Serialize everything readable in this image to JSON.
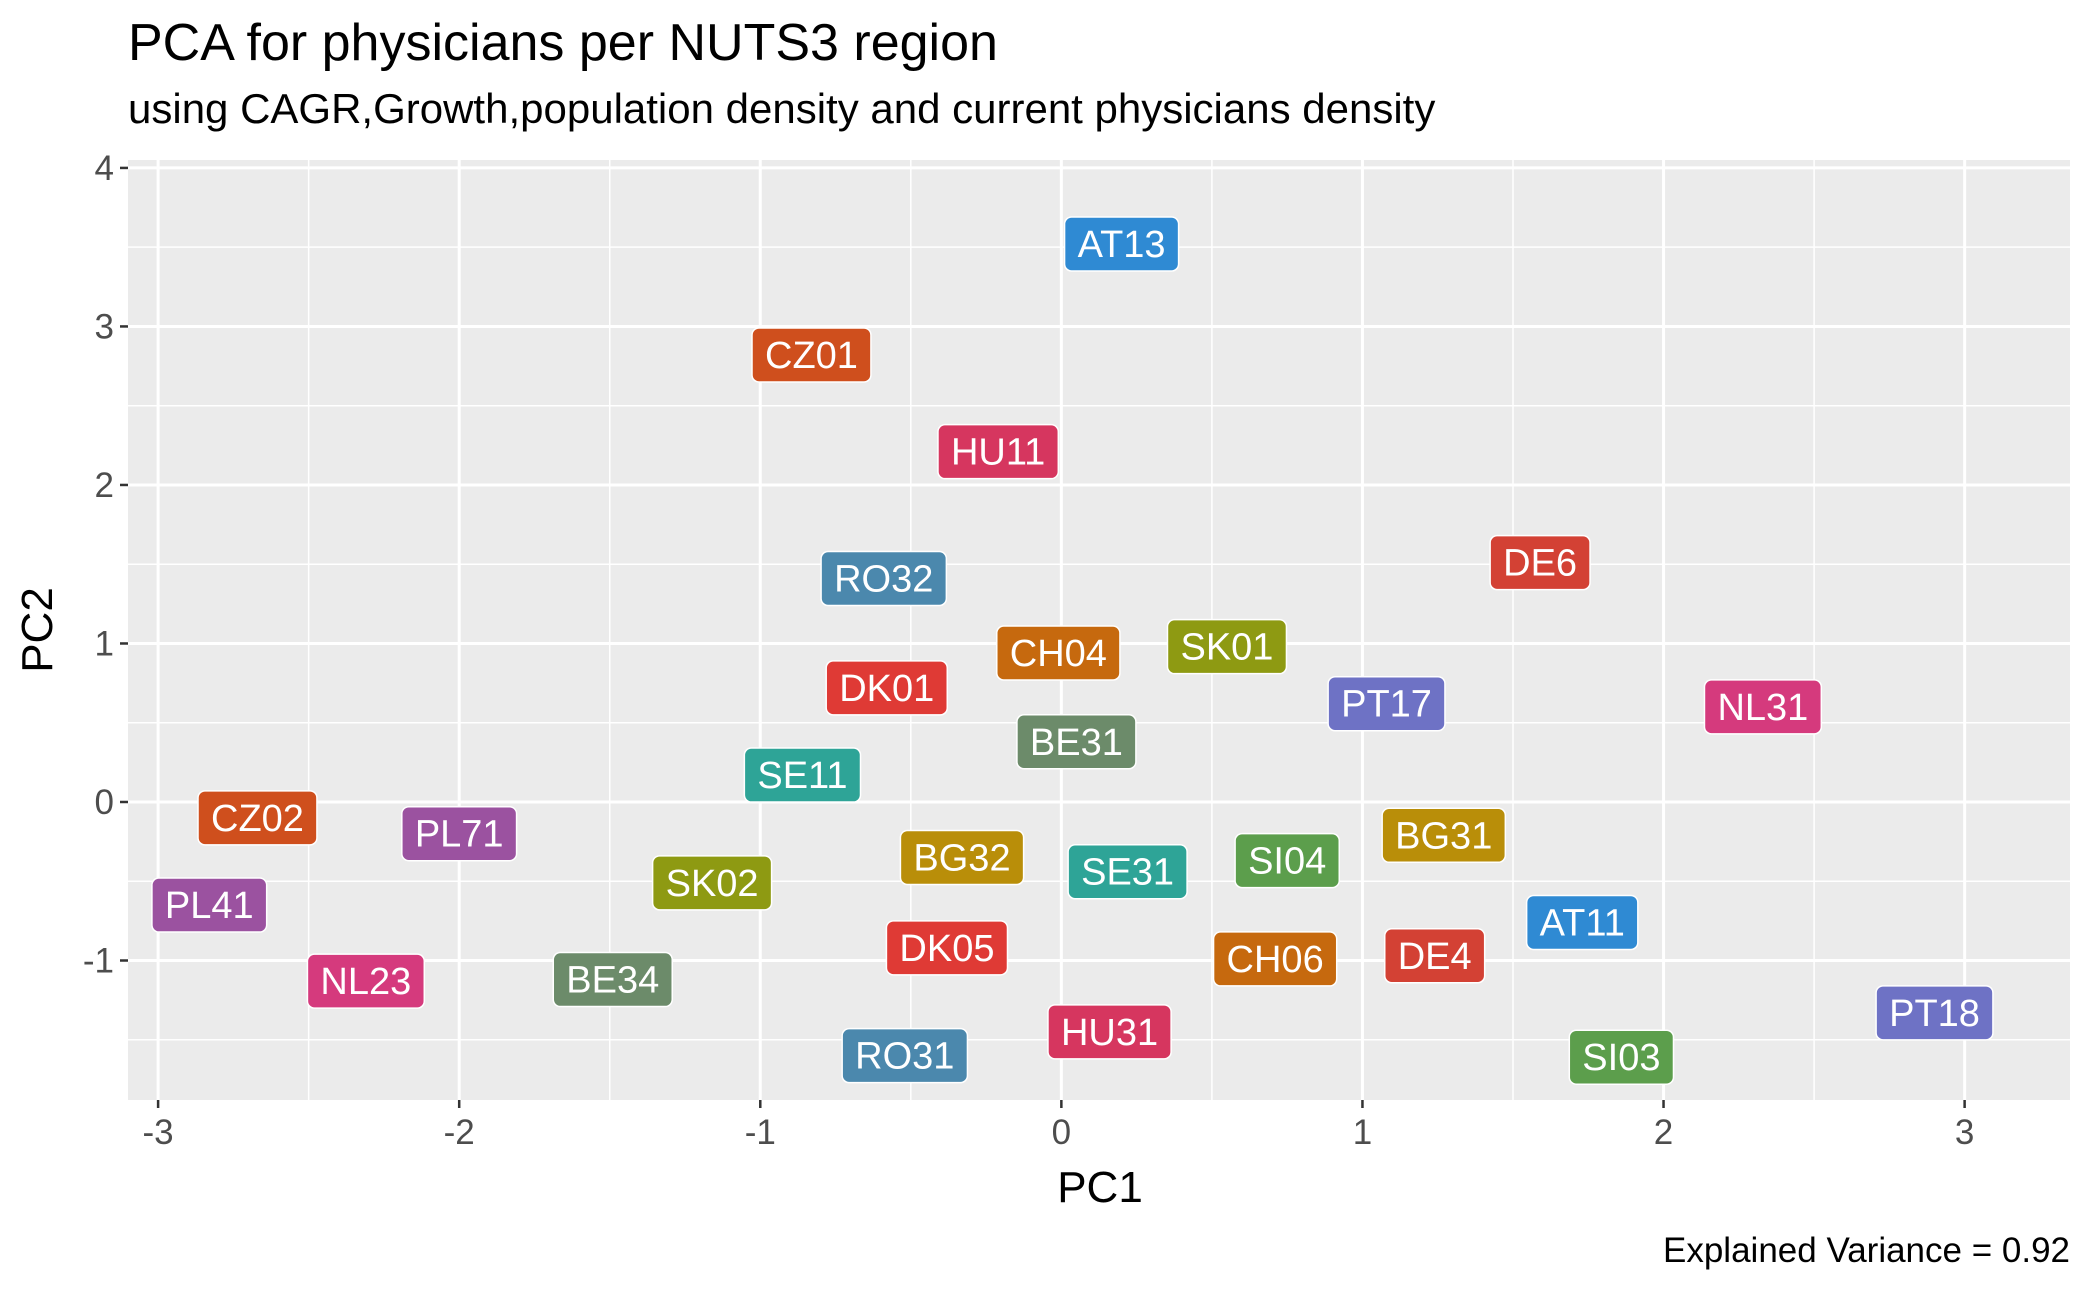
{
  "chart_data": {
    "type": "scatter",
    "title": "PCA for  physicians per NUTS3 region",
    "subtitle": "using CAGR,Growth,population density and current physicians density",
    "xlabel": "PC1",
    "ylabel": "PC2",
    "caption": "Explained Variance = 0.92",
    "xlim": [
      -3.1,
      3.35
    ],
    "ylim": [
      -1.88,
      4.05
    ],
    "x_ticks": [
      -3,
      -2,
      -1,
      0,
      1,
      2,
      3
    ],
    "x_tick_labels": [
      "-3",
      "-2",
      "-1",
      "0",
      "1",
      "2",
      "3"
    ],
    "y_ticks": [
      -1,
      0,
      1,
      2,
      3,
      4
    ],
    "y_tick_labels": [
      "-1",
      "0",
      "1",
      "2",
      "3",
      "4"
    ],
    "grid": true,
    "panel_background": "#ebebeb",
    "grid_color": "#ffffff",
    "points": [
      {
        "label": "AT13",
        "x": 0.2,
        "y": 3.52,
        "color": "#2f8ad3"
      },
      {
        "label": "CZ01",
        "x": -0.83,
        "y": 2.82,
        "color": "#cf4f1d"
      },
      {
        "label": "HU11",
        "x": -0.21,
        "y": 2.21,
        "color": "#d6365f"
      },
      {
        "label": "DE6",
        "x": 1.59,
        "y": 1.51,
        "color": "#d34134"
      },
      {
        "label": "RO32",
        "x": -0.59,
        "y": 1.41,
        "color": "#4b88ad"
      },
      {
        "label": "CH04",
        "x": -0.01,
        "y": 0.94,
        "color": "#c6690e"
      },
      {
        "label": "SK01",
        "x": 0.55,
        "y": 0.98,
        "color": "#8e9a12"
      },
      {
        "label": "DK01",
        "x": -0.58,
        "y": 0.72,
        "color": "#df3a35"
      },
      {
        "label": "PT17",
        "x": 1.08,
        "y": 0.62,
        "color": "#6e72c5"
      },
      {
        "label": "NL31",
        "x": 2.33,
        "y": 0.6,
        "color": "#d53a7d"
      },
      {
        "label": "BE31",
        "x": 0.05,
        "y": 0.38,
        "color": "#6c8b6a"
      },
      {
        "label": "SE11",
        "x": -0.86,
        "y": 0.17,
        "color": "#2ea497"
      },
      {
        "label": "CZ02",
        "x": -2.67,
        "y": -0.1,
        "color": "#cf4f1d"
      },
      {
        "label": "PL71",
        "x": -2.0,
        "y": -0.2,
        "color": "#9b52a0"
      },
      {
        "label": "BG31",
        "x": 1.27,
        "y": -0.21,
        "color": "#b98e09"
      },
      {
        "label": "BG32",
        "x": -0.33,
        "y": -0.35,
        "color": "#b98e09"
      },
      {
        "label": "SI04",
        "x": 0.75,
        "y": -0.37,
        "color": "#5c9e4c"
      },
      {
        "label": "SE31",
        "x": 0.22,
        "y": -0.44,
        "color": "#2ea497"
      },
      {
        "label": "SK02",
        "x": -1.16,
        "y": -0.51,
        "color": "#8e9a12"
      },
      {
        "label": "PL41",
        "x": -2.83,
        "y": -0.65,
        "color": "#9b52a0"
      },
      {
        "label": "AT11",
        "x": 1.73,
        "y": -0.76,
        "color": "#2f8ad3"
      },
      {
        "label": "DK05",
        "x": -0.38,
        "y": -0.92,
        "color": "#df3a35"
      },
      {
        "label": "CH06",
        "x": 0.71,
        "y": -0.99,
        "color": "#c6690e"
      },
      {
        "label": "DE4",
        "x": 1.24,
        "y": -0.97,
        "color": "#d34134"
      },
      {
        "label": "NL23",
        "x": -2.31,
        "y": -1.13,
        "color": "#d53a7d"
      },
      {
        "label": "BE34",
        "x": -1.49,
        "y": -1.12,
        "color": "#6c8b6a"
      },
      {
        "label": "PT18",
        "x": 2.9,
        "y": -1.33,
        "color": "#6e72c5"
      },
      {
        "label": "HU31",
        "x": 0.16,
        "y": -1.45,
        "color": "#d6365f"
      },
      {
        "label": "RO31",
        "x": -0.52,
        "y": -1.6,
        "color": "#4b88ad"
      },
      {
        "label": "SI03",
        "x": 1.86,
        "y": -1.61,
        "color": "#5c9e4c"
      }
    ]
  }
}
